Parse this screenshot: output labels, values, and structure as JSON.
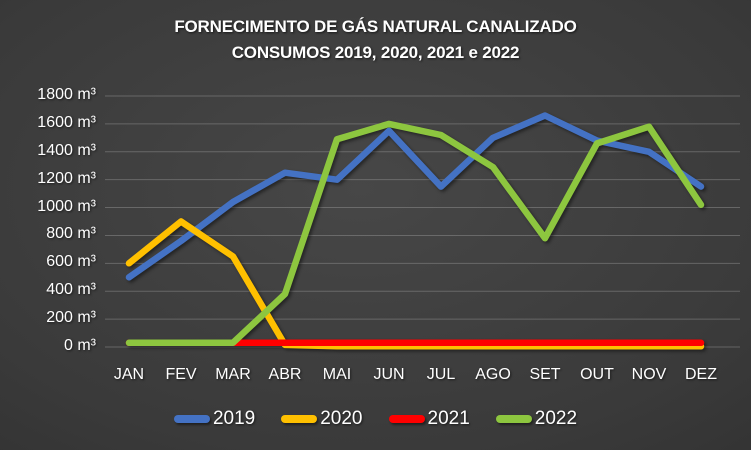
{
  "title": {
    "line1": "FORNECIMENTO DE GÁS NATURAL CANALIZADO",
    "line2": "CONSUMOS 2019, 2020, 2021 e 2022"
  },
  "chart_data": {
    "type": "line",
    "title": "FORNECIMENTO DE GÁS NATURAL CANALIZADO — CONSUMOS 2019, 2020, 2021 e 2022",
    "unit": "m³",
    "categories": [
      "JAN",
      "FEV",
      "MAR",
      "ABR",
      "MAI",
      "JUN",
      "JUL",
      "AGO",
      "SET",
      "OUT",
      "NOV",
      "DEZ"
    ],
    "series": [
      {
        "name": "2019",
        "color": "#4472C4",
        "values": [
          500,
          760,
          1040,
          1250,
          1200,
          1550,
          1150,
          1500,
          1660,
          1480,
          1400,
          1150
        ]
      },
      {
        "name": "2020",
        "color": "#FFC000",
        "values": [
          600,
          900,
          650,
          15,
          5,
          5,
          5,
          5,
          5,
          5,
          5,
          5
        ]
      },
      {
        "name": "2021",
        "color": "#FF0000",
        "values": [
          30,
          30,
          30,
          30,
          30,
          30,
          30,
          30,
          30,
          30,
          30,
          30
        ]
      },
      {
        "name": "2022",
        "color": "#8DC63F",
        "values": [
          30,
          30,
          30,
          380,
          1490,
          1600,
          1520,
          1290,
          780,
          1460,
          1580,
          1020
        ]
      }
    ],
    "ylim": [
      0,
      1800
    ],
    "y_tick_step": 200,
    "y_tick_labels": [
      "0 m³",
      "200 m³",
      "400 m³",
      "600 m³",
      "800 m³",
      "1000 m³",
      "1200 m³",
      "1400 m³",
      "1600 m³",
      "1800 m³"
    ],
    "grid": true,
    "gridline_color": "#9a9a9a",
    "legend_position": "bottom"
  }
}
